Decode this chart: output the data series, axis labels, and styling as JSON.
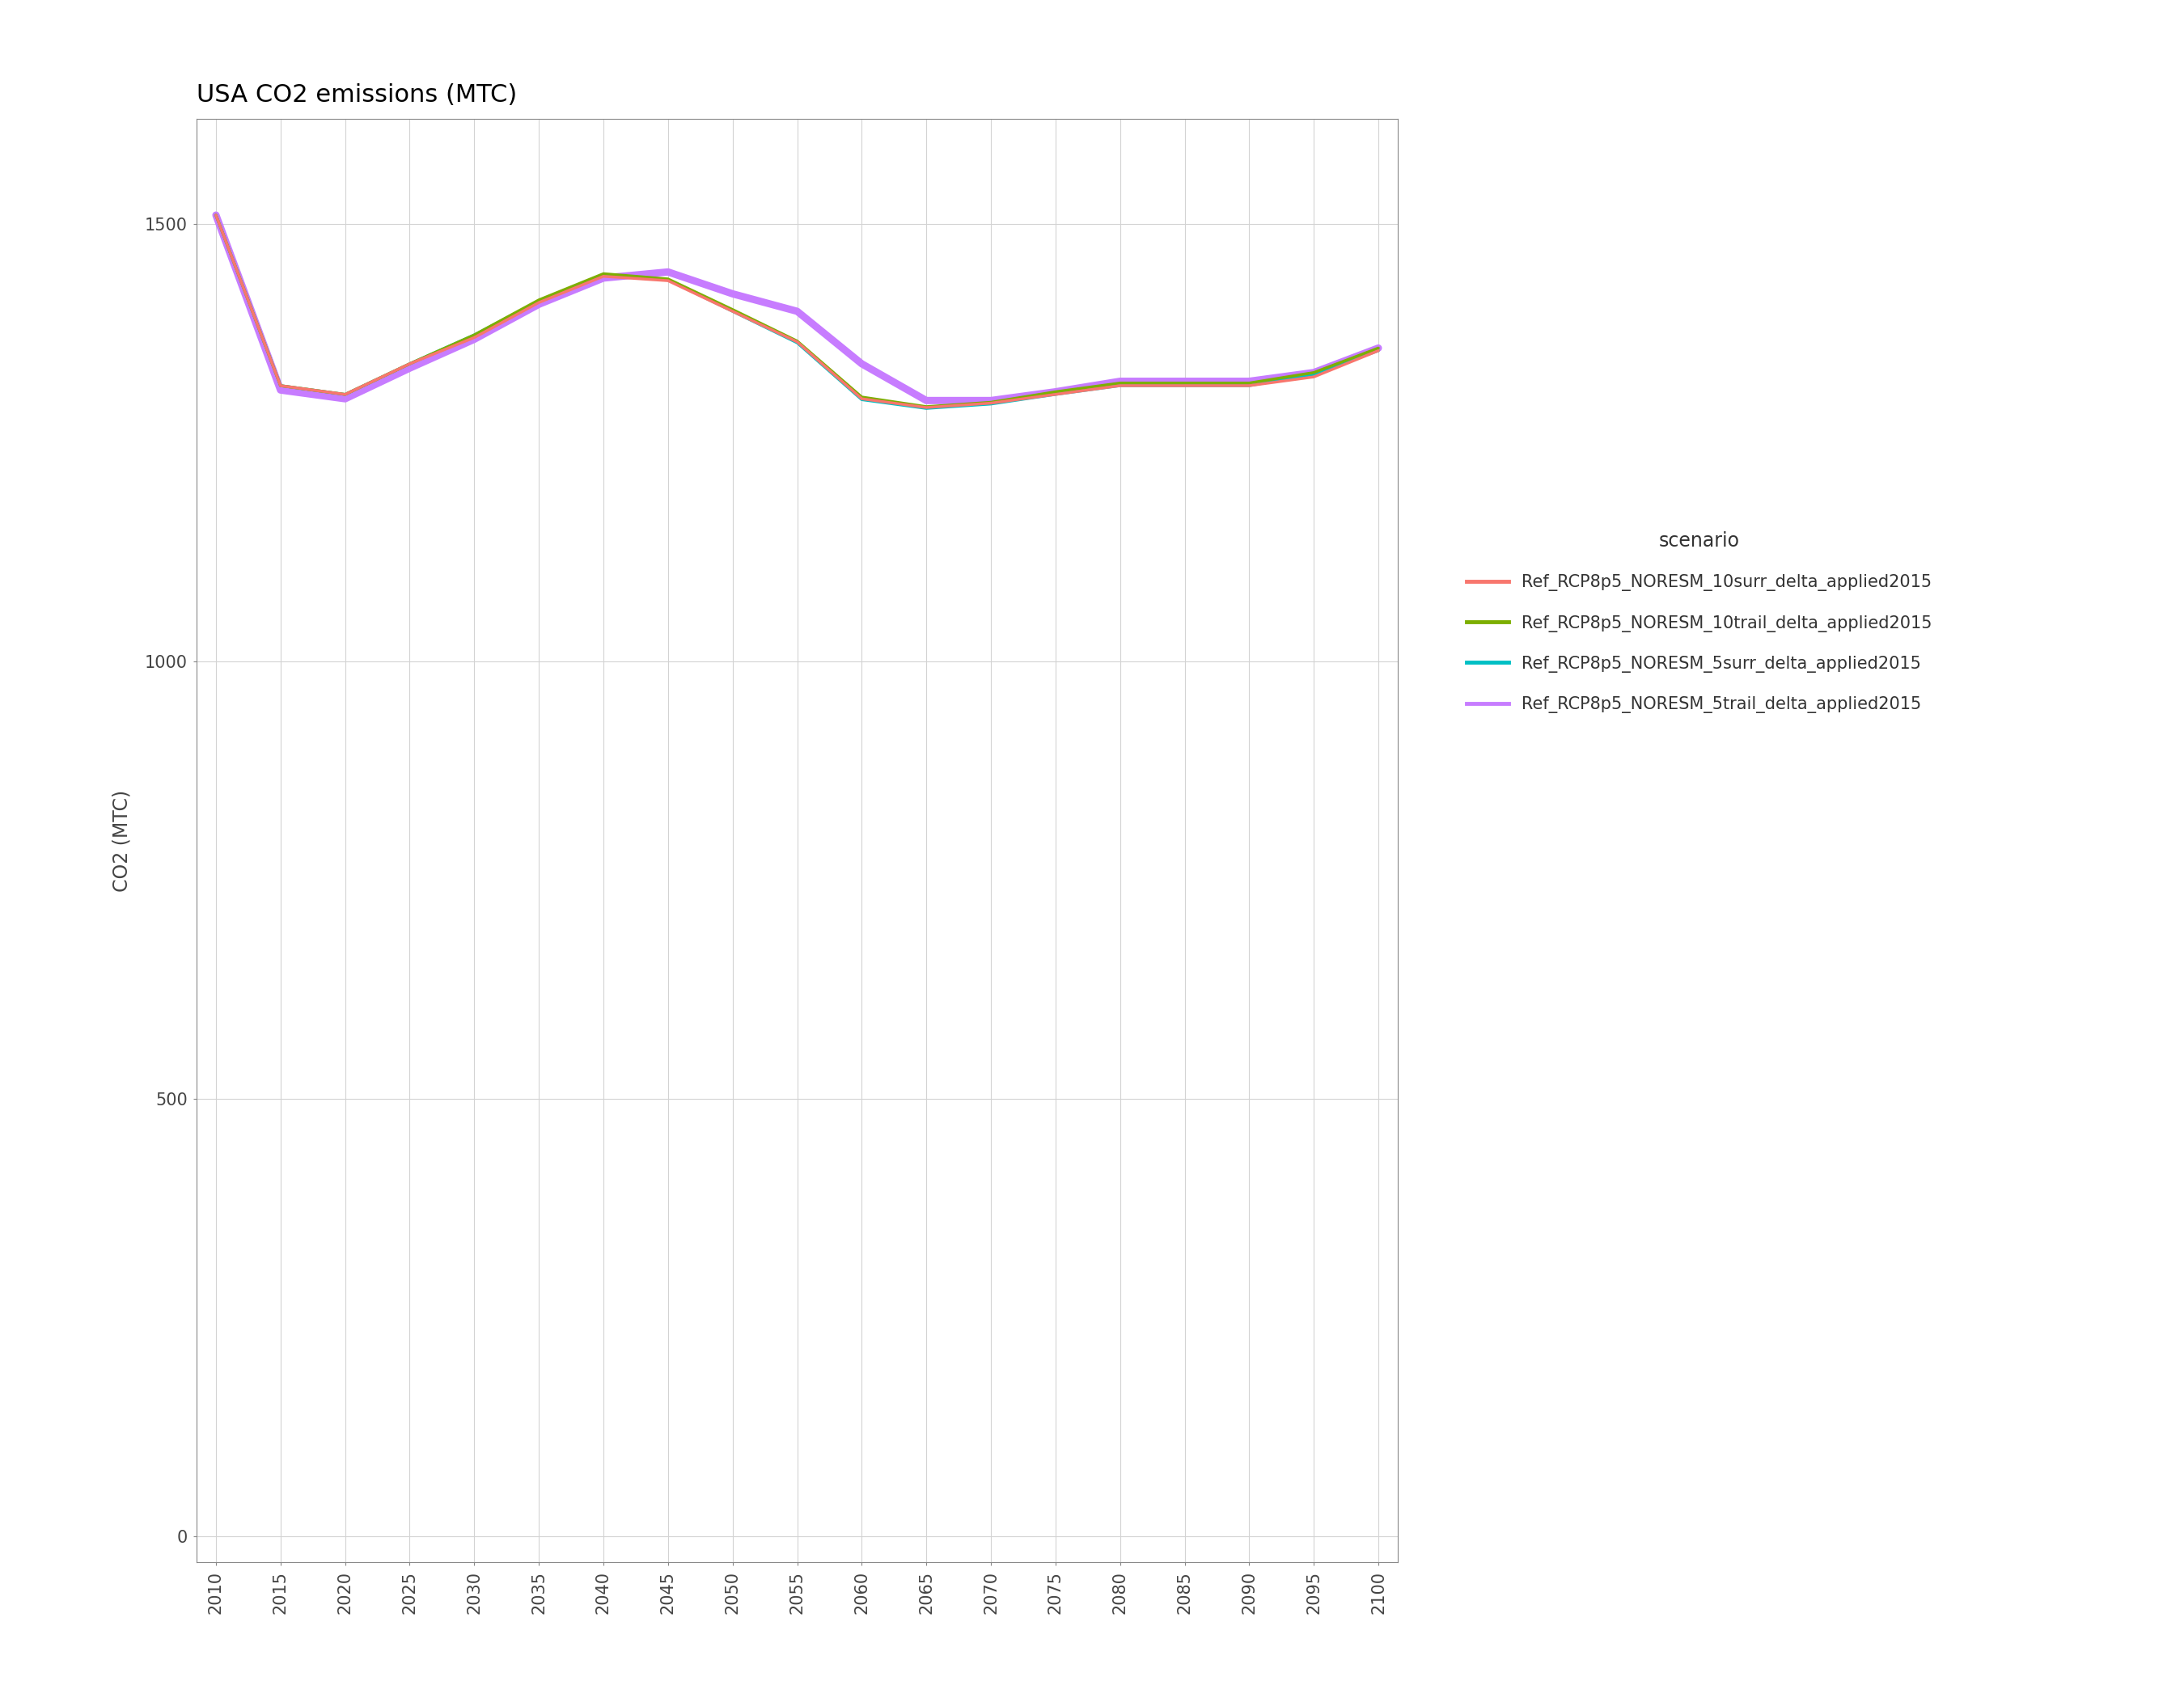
{
  "title": "USA CO2 emissions (MTC)",
  "xlabel": "",
  "ylabel": "CO2 (MTC)",
  "background_color": "#ffffff",
  "plot_background": "#ffffff",
  "grid_color": "#d3d3d3",
  "years": [
    2010,
    2015,
    2020,
    2025,
    2030,
    2035,
    2040,
    2045,
    2050,
    2055,
    2060,
    2065,
    2070,
    2075,
    2080,
    2085,
    2090,
    2095,
    2100
  ],
  "series": [
    {
      "label": "Ref_RCP8p5_NORESM_10surr_delta_applied2015",
      "color": "#F8766D",
      "linewidth": 2.5,
      "zorder": 4,
      "values": [
        1510,
        1315,
        1305,
        1340,
        1370,
        1410,
        1440,
        1435,
        1400,
        1365,
        1300,
        1290,
        1295,
        1305,
        1315,
        1315,
        1315,
        1325,
        1355
      ]
    },
    {
      "label": "Ref_RCP8p5_NORESM_10trail_delta_applied2015",
      "color": "#7CAE00",
      "linewidth": 2.5,
      "zorder": 3,
      "values": [
        1510,
        1315,
        1305,
        1340,
        1373,
        1413,
        1443,
        1437,
        1402,
        1366,
        1302,
        1291,
        1296,
        1308,
        1318,
        1318,
        1318,
        1330,
        1358
      ]
    },
    {
      "label": "Ref_RCP8p5_NORESM_5surr_delta_applied2015",
      "color": "#00BFC4",
      "linewidth": 2.5,
      "zorder": 2,
      "values": [
        1510,
        1315,
        1305,
        1340,
        1373,
        1412,
        1441,
        1436,
        1400,
        1364,
        1299,
        1289,
        1294,
        1305,
        1315,
        1315,
        1315,
        1328,
        1355
      ]
    },
    {
      "label": "Ref_RCP8p5_NORESM_5trail_delta_applied2015",
      "color": "#C77CFF",
      "linewidth": 6.5,
      "zorder": 1,
      "values": [
        1510,
        1310,
        1300,
        1335,
        1368,
        1408,
        1438,
        1445,
        1420,
        1400,
        1340,
        1298,
        1298,
        1308,
        1320,
        1320,
        1320,
        1330,
        1358
      ]
    }
  ],
  "ylim": [
    -30,
    1620
  ],
  "yticks": [
    0,
    500,
    1000,
    1500
  ],
  "xlim": [
    2008.5,
    2101.5
  ],
  "xticks": [
    2010,
    2015,
    2020,
    2025,
    2030,
    2035,
    2040,
    2045,
    2050,
    2055,
    2060,
    2065,
    2070,
    2075,
    2080,
    2085,
    2090,
    2095,
    2100
  ],
  "legend_title": "scenario",
  "title_fontsize": 22,
  "axis_fontsize": 17,
  "tick_fontsize": 15,
  "legend_fontsize": 15,
  "legend_title_fontsize": 17
}
